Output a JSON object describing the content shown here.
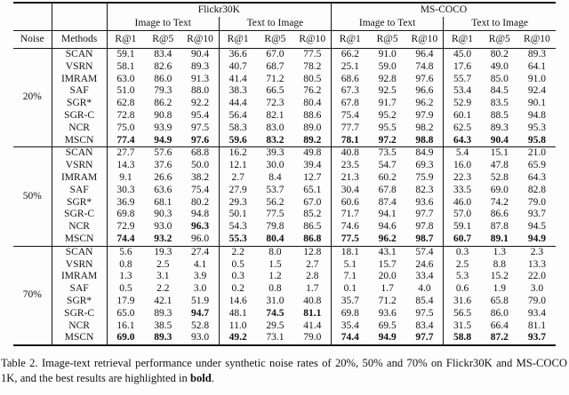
{
  "colors": {
    "ink": "#161616",
    "background": "#fdfdfd"
  },
  "table": {
    "noise_header": "Noise",
    "methods_header": "Methods",
    "datasets": [
      "Flickr30K",
      "MS-COCO"
    ],
    "directions": [
      "Image to Text",
      "Text to Image"
    ],
    "metric_headers": [
      "R@1",
      "R@5",
      "R@10"
    ],
    "blocks": [
      {
        "noise": "20%",
        "rows": [
          {
            "method": "SCAN",
            "values": [
              "59.1",
              "83.4",
              "90.4",
              "36.6",
              "67.0",
              "77.5",
              "66.2",
              "91.0",
              "96.4",
              "45.0",
              "80.2",
              "89.3"
            ],
            "bold": []
          },
          {
            "method": "VSRN",
            "values": [
              "58.1",
              "82.6",
              "89.3",
              "40.7",
              "68.7",
              "78.2",
              "25.1",
              "59.0",
              "74.8",
              "17.6",
              "49.0",
              "64.1"
            ],
            "bold": []
          },
          {
            "method": "IMRAM",
            "values": [
              "63.0",
              "86.0",
              "91.3",
              "41.4",
              "71.2",
              "80.5",
              "68.6",
              "92.8",
              "97.6",
              "55.7",
              "85.0",
              "91.0"
            ],
            "bold": []
          },
          {
            "method": "SAF",
            "values": [
              "51.0",
              "79.3",
              "88.0",
              "38.3",
              "66.5",
              "76.2",
              "67.3",
              "92.5",
              "96.6",
              "53.4",
              "84.5",
              "92.4"
            ],
            "bold": []
          },
          {
            "method": "SGR*",
            "values": [
              "62.8",
              "86.2",
              "92.2",
              "44.4",
              "72.3",
              "80.4",
              "67.8",
              "91.7",
              "96.2",
              "52.9",
              "83.5",
              "90.1"
            ],
            "bold": []
          },
          {
            "method": "SGR-C",
            "values": [
              "72.8",
              "90.8",
              "95.4",
              "56.4",
              "82.1",
              "88.6",
              "75.4",
              "95.2",
              "97.9",
              "60.1",
              "88.5",
              "94.8"
            ],
            "bold": []
          },
          {
            "method": "NCR",
            "values": [
              "75.0",
              "93.9",
              "97.5",
              "58.3",
              "83.0",
              "89.0",
              "77.7",
              "95.5",
              "98.2",
              "62.5",
              "89.3",
              "95.3"
            ],
            "bold": []
          },
          {
            "method": "MSCN",
            "values": [
              "77.4",
              "94.9",
              "97.6",
              "59.6",
              "83.2",
              "89.2",
              "78.1",
              "97.2",
              "98.8",
              "64.3",
              "90.4",
              "95.8"
            ],
            "bold": [
              0,
              1,
              2,
              3,
              4,
              5,
              6,
              7,
              8,
              9,
              10,
              11
            ]
          }
        ]
      },
      {
        "noise": "50%",
        "rows": [
          {
            "method": "SCAN",
            "values": [
              "27.7",
              "57.6",
              "68.8",
              "16.2",
              "39.3",
              "49.8",
              "40.8",
              "73.5",
              "84.9",
              "5.4",
              "15.1",
              "21.0"
            ],
            "bold": []
          },
          {
            "method": "VSRN",
            "values": [
              "14.3",
              "37.6",
              "50.0",
              "12.1",
              "30.0",
              "39.4",
              "23.5",
              "54.7",
              "69.3",
              "16.0",
              "47.8",
              "65.9"
            ],
            "bold": []
          },
          {
            "method": "IMRAM",
            "values": [
              "9.1",
              "26.6",
              "38.2",
              "2.7",
              "8.4",
              "12.7",
              "21.3",
              "60.2",
              "75.9",
              "22.3",
              "52.8",
              "64.3"
            ],
            "bold": []
          },
          {
            "method": "SAF",
            "values": [
              "30.3",
              "63.6",
              "75.4",
              "27.9",
              "53.7",
              "65.1",
              "30.4",
              "67.8",
              "82.3",
              "33.5",
              "69.0",
              "82.8"
            ],
            "bold": []
          },
          {
            "method": "SGR*",
            "values": [
              "36.9",
              "68.1",
              "80.2",
              "29.3",
              "56.2",
              "67.0",
              "60.6",
              "87.4",
              "93.6",
              "46.0",
              "74.2",
              "79.0"
            ],
            "bold": []
          },
          {
            "method": "SGR-C",
            "values": [
              "69.8",
              "90.3",
              "94.8",
              "50.1",
              "77.5",
              "85.2",
              "71.7",
              "94.1",
              "97.7",
              "57.0",
              "86.6",
              "93.7"
            ],
            "bold": []
          },
          {
            "method": "NCR",
            "values": [
              "72.9",
              "93.0",
              "96.3",
              "54.3",
              "79.8",
              "86.5",
              "74.6",
              "94.6",
              "97.8",
              "59.1",
              "87.8",
              "94.5"
            ],
            "bold": [
              2
            ]
          },
          {
            "method": "MSCN",
            "values": [
              "74.4",
              "93.2",
              "96.0",
              "55.3",
              "80.4",
              "86.8",
              "77.5",
              "96.2",
              "98.7",
              "60.7",
              "89.1",
              "94.9"
            ],
            "bold": [
              0,
              1,
              3,
              4,
              5,
              6,
              7,
              8,
              9,
              10,
              11
            ]
          }
        ]
      },
      {
        "noise": "70%",
        "rows": [
          {
            "method": "SCAN",
            "values": [
              "5.6",
              "19.3",
              "27.4",
              "2.2",
              "8.0",
              "12.8",
              "18.1",
              "43.1",
              "57.4",
              "0.3",
              "1.3",
              "2.3"
            ],
            "bold": []
          },
          {
            "method": "VSRN",
            "values": [
              "0.8",
              "2.5",
              "4.1",
              "0.5",
              "1.5",
              "2.7",
              "5.1",
              "15.7",
              "24.6",
              "2.5",
              "8.8",
              "13.3"
            ],
            "bold": []
          },
          {
            "method": "IMRAM",
            "values": [
              "1.3",
              "3.1",
              "3.9",
              "0.3",
              "1.2",
              "2.8",
              "7.1",
              "20.0",
              "33.4",
              "5.3",
              "15.2",
              "22.0"
            ],
            "bold": []
          },
          {
            "method": "SAF",
            "values": [
              "0.5",
              "2.2",
              "3.0",
              "0.2",
              "0.8",
              "1.7",
              "0.1",
              "1.7",
              "4.0",
              "0.6",
              "1.9",
              "3.0"
            ],
            "bold": []
          },
          {
            "method": "SGR*",
            "values": [
              "17.9",
              "42.1",
              "51.9",
              "14.6",
              "31.0",
              "40.8",
              "35.7",
              "71.2",
              "85.4",
              "31.6",
              "65.8",
              "79.0"
            ],
            "bold": []
          },
          {
            "method": "SGR-C",
            "values": [
              "65.0",
              "89.3",
              "94.7",
              "48.1",
              "74.5",
              "81.1",
              "69.8",
              "93.6",
              "97.5",
              "56.5",
              "86.0",
              "93.4"
            ],
            "bold": [
              2,
              4,
              5
            ]
          },
          {
            "method": "NCR",
            "values": [
              "16.1",
              "38.5",
              "52.8",
              "11.0",
              "29.5",
              "41.4",
              "35.4",
              "69.5",
              "83.4",
              "31.5",
              "66.4",
              "81.1"
            ],
            "bold": []
          },
          {
            "method": "MSCN",
            "values": [
              "69.0",
              "89.3",
              "93.0",
              "49.2",
              "73.1",
              "79.0",
              "74.4",
              "94.9",
              "97.7",
              "58.8",
              "87.2",
              "93.7"
            ],
            "bold": [
              0,
              1,
              3,
              6,
              7,
              8,
              9,
              10,
              11
            ]
          }
        ]
      }
    ]
  },
  "caption": {
    "prefix": "Table 2. Image-text retrieval performance under synthetic noise rates of 20%, 50% and 70% on Flickr30K and MS-COCO 1K, and the best results are highlighted in ",
    "bold_word": "bold",
    "suffix": "."
  }
}
